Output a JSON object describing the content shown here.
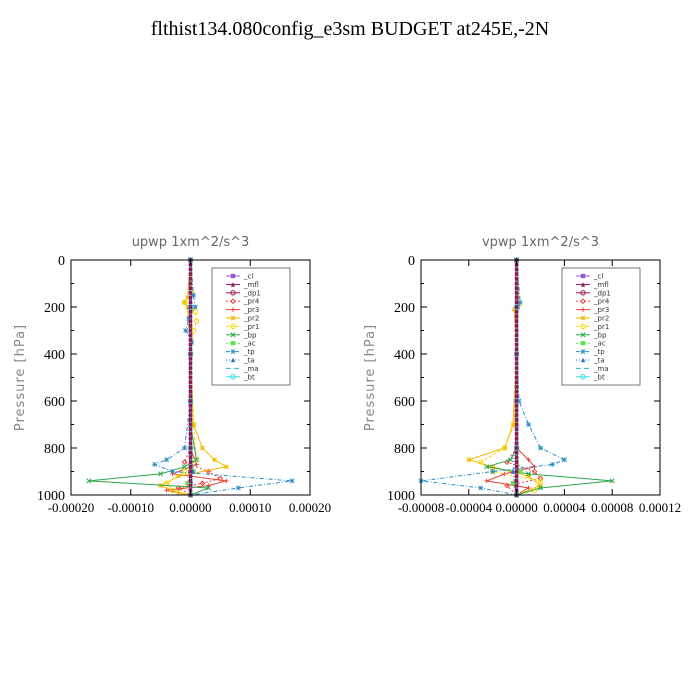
{
  "figure": {
    "title": "flthist134.080config_e3sm  BUDGET at245E,-2N"
  },
  "colors": {
    "_cl": "#9b59d0",
    "_mfl": "#8b1a5a",
    "_dp1": "#a0155a",
    "_pr4": "#e8433c",
    "_pr3": "#e8433c",
    "_pr2": "#f5b800",
    "_pr1": "#f5d800",
    "_bp": "#2aa84a",
    "_ac": "#66dd55",
    "_tp": "#2a8bc8",
    "_ta": "#2a6bd0",
    "_ma": "#3ab0d8",
    "_bt": "#33dddd"
  },
  "chart_data": [
    {
      "type": "line",
      "title": "upwp   1xm^2/s^3",
      "ylabel": "Pressure [hPa]",
      "xlabel": "",
      "ylim": [
        1000,
        0
      ],
      "xlim": [
        -0.0002,
        0.0002
      ],
      "xticks": [
        -0.0002,
        -0.0001,
        0.0,
        0.0001,
        0.0002
      ],
      "xtick_labels": [
        "-0.00020",
        "-0.00010",
        "0.00000",
        "0.00010",
        "0.00020"
      ],
      "yticks": [
        0,
        200,
        400,
        600,
        800,
        1000
      ],
      "legend_placement": "top-right",
      "legend": [
        "_cl",
        "_mfl",
        "_dp1",
        "_pr4",
        "_pr3",
        "_pr2",
        "_pr1",
        "_bp",
        "_ac",
        "_tp",
        "_ta",
        "_ma",
        "_bt"
      ],
      "series": [
        {
          "name": "_cl",
          "p": [
            0,
            200,
            400,
            600,
            800,
            900,
            950,
            1000
          ],
          "values": [
            0,
            0,
            0,
            0,
            0,
            0,
            0,
            0
          ]
        },
        {
          "name": "_mfl",
          "p": [
            0,
            200,
            400,
            600,
            800,
            900,
            950,
            1000
          ],
          "values": [
            0,
            0,
            0,
            0,
            0,
            0,
            0,
            0
          ]
        },
        {
          "name": "_dp1",
          "p": [
            0,
            400,
            800,
            900,
            950,
            1000
          ],
          "values": [
            0,
            0,
            0,
            2e-06,
            -3e-06,
            0
          ]
        },
        {
          "name": "_pr4",
          "p": [
            0,
            800,
            860,
            900,
            930,
            950,
            970,
            1000
          ],
          "values": [
            0,
            0,
            -1e-05,
            3e-05,
            5e-05,
            2e-05,
            -2e-05,
            0
          ]
        },
        {
          "name": "_pr3",
          "p": [
            0,
            800,
            870,
            910,
            940,
            960,
            980,
            1000
          ],
          "values": [
            0,
            0,
            1e-05,
            -3e-05,
            6e-05,
            3e-05,
            -4e-05,
            0
          ]
        },
        {
          "name": "_pr2",
          "p": [
            0,
            160,
            180,
            200,
            400,
            700,
            800,
            850,
            880,
            920,
            960,
            990,
            1000
          ],
          "values": [
            0,
            -5e-06,
            -1e-05,
            -5e-06,
            0,
            5e-06,
            2e-05,
            4e-05,
            6e-05,
            -2e-05,
            -5e-05,
            -2e-05,
            0
          ]
        },
        {
          "name": "_pr1",
          "p": [
            0,
            140,
            180,
            220,
            260,
            300,
            400,
            700,
            850,
            900,
            950,
            980,
            1000
          ],
          "values": [
            0,
            2e-06,
            -1e-05,
            8e-06,
            1e-05,
            5e-06,
            0,
            5e-06,
            1e-05,
            -1e-05,
            -4e-05,
            -3e-05,
            0
          ]
        },
        {
          "name": "_bp",
          "p": [
            0,
            700,
            850,
            880,
            910,
            940,
            970,
            1000
          ],
          "values": [
            0,
            0,
            1e-05,
            -1e-05,
            -5e-05,
            -0.00017,
            3e-05,
            0
          ]
        },
        {
          "name": "_ac",
          "p": [
            0,
            800,
            900,
            950,
            1000
          ],
          "values": [
            0,
            0,
            5e-06,
            -5e-06,
            0
          ]
        },
        {
          "name": "_tp",
          "p": [
            0,
            150,
            200,
            250,
            300,
            350,
            400,
            600,
            800,
            850,
            870,
            900,
            940,
            970,
            1000
          ],
          "values": [
            0,
            5e-06,
            8e-06,
            -3e-06,
            -8e-06,
            2e-06,
            0,
            0,
            -1e-05,
            -4e-05,
            -6e-05,
            -3e-05,
            0.00017,
            8e-05,
            0
          ]
        },
        {
          "name": "_ta",
          "p": [
            0,
            200,
            400,
            700,
            900,
            1000
          ],
          "values": [
            0,
            -2e-06,
            0,
            0,
            4e-06,
            0
          ]
        },
        {
          "name": "_ma",
          "p": [
            0,
            1000
          ],
          "values": [
            0,
            0
          ]
        },
        {
          "name": "_bt",
          "p": [
            0,
            200,
            400,
            600,
            800,
            1000
          ],
          "values": [
            0,
            0,
            0,
            0,
            0,
            0
          ]
        }
      ]
    },
    {
      "type": "line",
      "title": "vpwp   1xm^2/s^3",
      "ylabel": "Pressure [hPa]",
      "xlabel": "",
      "ylim": [
        1000,
        0
      ],
      "xlim": [
        -8e-05,
        0.00012
      ],
      "xticks": [
        -8e-05,
        -4e-05,
        0.0,
        4e-05,
        8e-05,
        0.00012
      ],
      "xtick_labels": [
        "-0.00008",
        "-0.00004",
        "0.00000",
        "0.00004",
        "0.00008",
        "0.00012"
      ],
      "yticks": [
        0,
        200,
        400,
        600,
        800,
        1000
      ],
      "legend_placement": "top-right",
      "legend": [
        "_cl",
        "_mfl",
        "_dp1",
        "_pr4",
        "_pr3",
        "_pr2",
        "_pr1",
        "_bp",
        "_ac",
        "_tp",
        "_ta",
        "_ma",
        "_bt"
      ],
      "series": [
        {
          "name": "_cl",
          "p": [
            0,
            200,
            400,
            600,
            800,
            1000
          ],
          "values": [
            0,
            0,
            0,
            0,
            0,
            0
          ]
        },
        {
          "name": "_mfl",
          "p": [
            0,
            200,
            400,
            600,
            800,
            1000
          ],
          "values": [
            0,
            0,
            0,
            0,
            0,
            0
          ]
        },
        {
          "name": "_dp1",
          "p": [
            0,
            800,
            900,
            950,
            1000
          ],
          "values": [
            0,
            0,
            1e-06,
            -2e-06,
            0
          ]
        },
        {
          "name": "_pr4",
          "p": [
            0,
            800,
            860,
            900,
            930,
            960,
            1000
          ],
          "values": [
            0,
            0,
            -8e-06,
            1.5e-05,
            2e-05,
            -8e-06,
            0
          ]
        },
        {
          "name": "_pr3",
          "p": [
            0,
            800,
            850,
            880,
            910,
            940,
            970,
            1000
          ],
          "values": [
            0,
            0,
            1e-05,
            1.5e-05,
            -1e-05,
            -2.5e-05,
            1e-05,
            0
          ]
        },
        {
          "name": "_pr2",
          "p": [
            0,
            190,
            210,
            400,
            700,
            800,
            850,
            880,
            920,
            960,
            1000
          ],
          "values": [
            0,
            2e-06,
            -2e-06,
            0,
            -3e-06,
            -1e-05,
            -4e-05,
            -2e-05,
            1e-05,
            2e-05,
            0
          ]
        },
        {
          "name": "_pr1",
          "p": [
            0,
            200,
            400,
            700,
            800,
            860,
            900,
            940,
            980,
            1000
          ],
          "values": [
            0,
            0,
            0,
            -2e-06,
            -1e-05,
            -3e-05,
            -2e-05,
            2e-05,
            1.5e-05,
            0
          ]
        },
        {
          "name": "_bp",
          "p": [
            0,
            800,
            850,
            880,
            910,
            940,
            970,
            1000
          ],
          "values": [
            0,
            0,
            -5e-06,
            -2.5e-05,
            1e-05,
            8e-05,
            2e-05,
            0
          ]
        },
        {
          "name": "_ac",
          "p": [
            0,
            800,
            900,
            950,
            1000
          ],
          "values": [
            0,
            0,
            3e-06,
            -3e-06,
            0
          ]
        },
        {
          "name": "_tp",
          "p": [
            0,
            180,
            200,
            400,
            600,
            700,
            800,
            850,
            870,
            900,
            940,
            970,
            1000
          ],
          "values": [
            0,
            3e-06,
            1e-06,
            0,
            2e-06,
            1e-05,
            2e-05,
            4e-05,
            3e-05,
            -2e-05,
            -8e-05,
            -3e-05,
            0
          ]
        },
        {
          "name": "_ta",
          "p": [
            0,
            200,
            400,
            700,
            900,
            1000
          ],
          "values": [
            0,
            0,
            0,
            0,
            -3e-06,
            0
          ]
        },
        {
          "name": "_ma",
          "p": [
            0,
            1000
          ],
          "values": [
            0,
            0
          ]
        },
        {
          "name": "_bt",
          "p": [
            0,
            200,
            400,
            600,
            800,
            1000
          ],
          "values": [
            0,
            0,
            0,
            0,
            0,
            0
          ]
        }
      ]
    }
  ]
}
